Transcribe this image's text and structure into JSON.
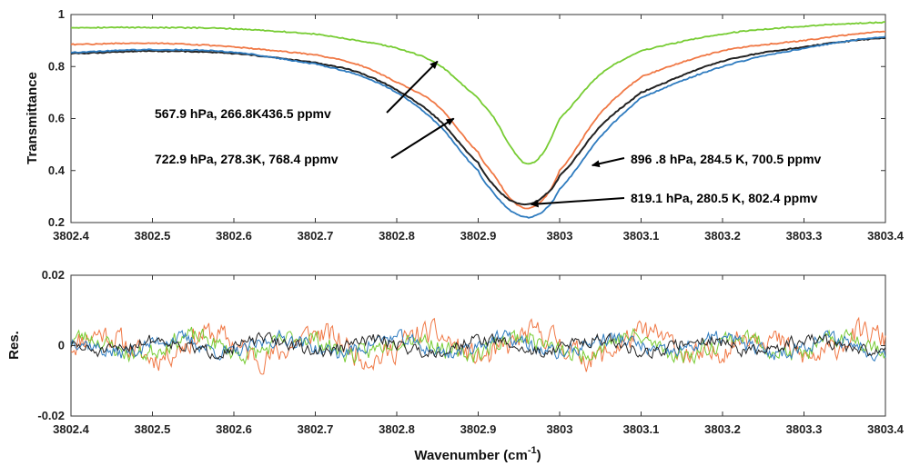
{
  "chart_data": [
    {
      "type": "line",
      "ylabel": "Transmittance",
      "xlim": [
        3802.4,
        3803.4
      ],
      "ylim": [
        0.2,
        1.0
      ],
      "x_ticks": [
        "3802.4",
        "3802.5",
        "3802.6",
        "3802.7",
        "3802.8",
        "3802.9",
        "3803",
        "3803.1",
        "3803.2",
        "3803.3",
        "3803.4"
      ],
      "y_ticks": [
        "0.2",
        "0.4",
        "0.6",
        "0.8",
        "1"
      ],
      "series": [
        {
          "color": "#77cc33",
          "x": [
            3802.4,
            3802.5,
            3802.6,
            3802.7,
            3802.75,
            3802.8,
            3802.85,
            3802.9,
            3802.92,
            3802.94,
            3802.96,
            3802.98,
            3803.0,
            3803.05,
            3803.1,
            3803.2,
            3803.3,
            3803.4
          ],
          "y": [
            0.95,
            0.95,
            0.945,
            0.925,
            0.9,
            0.87,
            0.81,
            0.68,
            0.6,
            0.49,
            0.425,
            0.47,
            0.6,
            0.77,
            0.86,
            0.925,
            0.955,
            0.97
          ]
        },
        {
          "color": "#f07845",
          "x": [
            3802.4,
            3802.5,
            3802.6,
            3802.7,
            3802.75,
            3802.8,
            3802.85,
            3802.9,
            3802.92,
            3802.94,
            3802.96,
            3802.98,
            3803.0,
            3803.05,
            3803.1,
            3803.2,
            3803.3,
            3803.4
          ],
          "y": [
            0.885,
            0.89,
            0.875,
            0.845,
            0.81,
            0.74,
            0.65,
            0.47,
            0.38,
            0.29,
            0.255,
            0.29,
            0.4,
            0.62,
            0.76,
            0.86,
            0.9,
            0.935
          ]
        },
        {
          "color": "#222222",
          "x": [
            3802.4,
            3802.5,
            3802.6,
            3802.7,
            3802.75,
            3802.8,
            3802.85,
            3802.9,
            3802.92,
            3802.94,
            3802.96,
            3802.98,
            3803.0,
            3803.05,
            3803.1,
            3803.2,
            3803.3,
            3803.4
          ],
          "y": [
            0.85,
            0.86,
            0.85,
            0.815,
            0.78,
            0.71,
            0.6,
            0.43,
            0.34,
            0.285,
            0.27,
            0.3,
            0.38,
            0.57,
            0.7,
            0.82,
            0.875,
            0.91
          ]
        },
        {
          "color": "#2e7bbf",
          "x": [
            3802.4,
            3802.5,
            3802.6,
            3802.7,
            3802.75,
            3802.8,
            3802.85,
            3802.9,
            3802.92,
            3802.94,
            3802.96,
            3802.98,
            3803.0,
            3803.05,
            3803.1,
            3803.2,
            3803.3,
            3803.4
          ],
          "y": [
            0.855,
            0.865,
            0.855,
            0.81,
            0.77,
            0.7,
            0.58,
            0.4,
            0.31,
            0.245,
            0.22,
            0.245,
            0.33,
            0.53,
            0.68,
            0.8,
            0.87,
            0.915
          ]
        }
      ],
      "annotations": [
        {
          "text": "567.9 hPa, 266.8K436.5  ppmv",
          "arrow_to": [
            3802.85,
            0.82
          ]
        },
        {
          "text": "722.9 hPa, 278.3K,  768.4 ppmv",
          "arrow_to": [
            3802.87,
            0.6
          ]
        },
        {
          "text": "896 .8 hPa, 284.5 K, 700.5 ppmv",
          "arrow_to": [
            3803.04,
            0.42
          ]
        },
        {
          "text": "819.1 hPa, 280.5 K, 802.4 ppmv",
          "arrow_to": [
            3802.965,
            0.27
          ]
        }
      ]
    },
    {
      "type": "line",
      "xlabel": "Wavenumber (cm",
      "xlabel_sup": "-1",
      "xlabel_end": ")",
      "ylabel": "Res.",
      "xlim": [
        3802.4,
        3803.4
      ],
      "ylim": [
        -0.02,
        0.02
      ],
      "x_ticks": [
        "3802.4",
        "3802.5",
        "3802.6",
        "3802.7",
        "3802.8",
        "3802.9",
        "3803",
        "3803.1",
        "3803.2",
        "3803.3",
        "3803.4"
      ],
      "y_ticks": [
        "-0.02",
        "0",
        "0.02"
      ],
      "series": [
        {
          "color": "#f07845",
          "amplitude": 0.0055,
          "seed": 11
        },
        {
          "color": "#77cc33",
          "amplitude": 0.004,
          "seed": 23
        },
        {
          "color": "#2e7bbf",
          "amplitude": 0.0033,
          "seed": 37
        },
        {
          "color": "#222222",
          "amplitude": 0.0028,
          "seed": 51
        }
      ]
    }
  ]
}
